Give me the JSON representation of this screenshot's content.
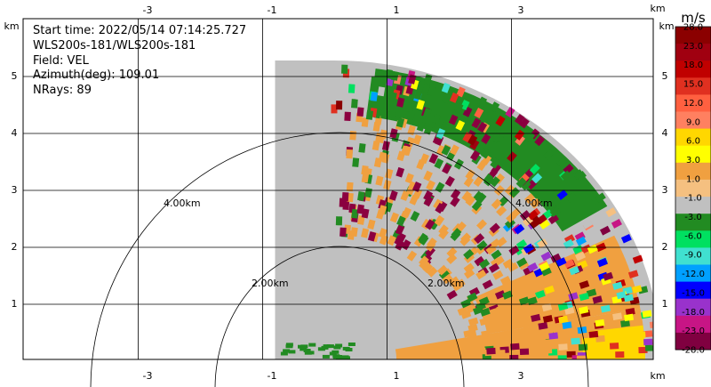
{
  "info": {
    "start_time": "Start time: 2022/05/14 07:14:25.727",
    "instrument": "WLS200s-181/WLS200s-181",
    "field": "Field: VEL",
    "azimuth": "Azimuth(deg): 109.01",
    "nrays": "NRays: 89"
  },
  "axes": {
    "x_unit": "km",
    "y_unit": "km",
    "x_ticks": [
      "-3",
      "-1",
      "1",
      "3"
    ],
    "y_ticks": [
      "1",
      "2",
      "3",
      "4",
      "5"
    ]
  },
  "rings": {
    "labels": [
      "4.00km",
      "2.00km",
      "2.00km",
      "4.00km"
    ]
  },
  "colorbar": {
    "unit": "m/s",
    "labels": [
      "28.0",
      "23.0",
      "18.0",
      "15.0",
      "12.0",
      "9.0",
      "6.0",
      "3.0",
      "1.0",
      "-1.0",
      "-3.0",
      "-6.0",
      "-9.0",
      "-12.0",
      "-15.0",
      "-18.0",
      "-23.0",
      "-28.0"
    ],
    "colors": [
      "#8b0000",
      "#a00010",
      "#c00000",
      "#e03020",
      "#ff6040",
      "#ff8060",
      "#ffd700",
      "#ffff00",
      "#f0a040",
      "#f5c080",
      "#c0c0c0",
      "#228b22",
      "#00e060",
      "#40e0d0",
      "#00a0ff",
      "#0000ff",
      "#9932cc",
      "#c71585",
      "#800040"
    ]
  },
  "chart_data": {
    "type": "heatmap",
    "title": "",
    "xlabel": "km",
    "ylabel": "km",
    "xlim": [
      -5.0,
      5.0
    ],
    "ylim": [
      0.0,
      5.5
    ],
    "grid": true,
    "range_rings_km": [
      2.0,
      4.0,
      6.0
    ],
    "sector": {
      "x_min": -0.95,
      "r_max": 5.25,
      "description": "quarter sector, first quadrant"
    },
    "field": "VEL",
    "azimuth_deg": 109.01,
    "nrays": 89,
    "dominant_values": [
      {
        "region": "inner sector",
        "value": 0.0,
        "color": "#c0c0c0"
      },
      {
        "region": "band y 3.2-4.6 km",
        "value": -3.0,
        "color": "#228b22"
      },
      {
        "region": "lower right x 1-4 km, y 0-1 km",
        "value": 3.0,
        "color": "#f0a040"
      },
      {
        "region": "lower right edge near x 3.5 km",
        "value": 6.0,
        "color": "#ffd700"
      }
    ],
    "colorbar_units": "m/s",
    "colorbar_range": [
      -28.0,
      28.0
    ]
  }
}
